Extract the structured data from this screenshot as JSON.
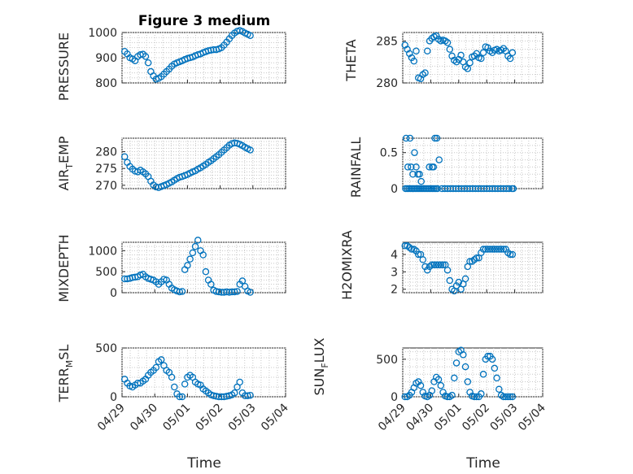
{
  "chart_data": [
    {
      "type": "scatter",
      "title": "Figure 3 medium",
      "ylabel": "PRESSURE",
      "xlabel": "",
      "ylim": [
        800,
        1000
      ],
      "yticks": [
        800,
        900,
        1000
      ],
      "yticklabels": [
        "800",
        "900",
        "1000"
      ],
      "xticks": [
        "04/29",
        "04/30",
        "05/01",
        "05/02",
        "05/03",
        "05/04"
      ],
      "grid": true,
      "x": [
        0.08,
        0.16,
        0.24,
        0.32,
        0.4,
        0.48,
        0.56,
        0.64,
        0.72,
        0.8,
        0.88,
        0.96,
        1.04,
        1.12,
        1.2,
        1.28,
        1.36,
        1.44,
        1.52,
        1.6,
        1.68,
        1.76,
        1.84,
        1.92,
        2.0,
        2.08,
        2.16,
        2.24,
        2.32,
        2.4,
        2.48,
        2.56,
        2.64,
        2.72,
        2.8,
        2.88,
        2.96,
        3.04,
        3.12,
        3.2,
        3.28,
        3.36,
        3.44,
        3.52,
        3.6,
        3.68,
        3.76,
        3.84,
        3.92
      ],
      "y": [
        925,
        915,
        900,
        895,
        888,
        905,
        912,
        914,
        905,
        880,
        845,
        828,
        815,
        818,
        825,
        835,
        845,
        855,
        866,
        875,
        880,
        884,
        888,
        893,
        897,
        900,
        903,
        908,
        912,
        915,
        920,
        924,
        928,
        930,
        932,
        932,
        935,
        940,
        950,
        962,
        975,
        988,
        998,
        1005,
        1008,
        1004,
        998,
        993,
        988
      ]
    },
    {
      "type": "scatter",
      "ylabel": "THETA",
      "ylim": [
        280,
        286
      ],
      "yticks": [
        280,
        285
      ],
      "yticklabels": [
        "280",
        "285"
      ],
      "xticks": [
        "04/29",
        "04/30",
        "05/01",
        "05/02",
        "05/03",
        "05/04"
      ],
      "grid": true,
      "x": [
        0.08,
        0.16,
        0.24,
        0.32,
        0.4,
        0.48,
        0.56,
        0.64,
        0.72,
        0.8,
        0.88,
        0.96,
        1.04,
        1.12,
        1.2,
        1.28,
        1.36,
        1.44,
        1.52,
        1.6,
        1.68,
        1.76,
        1.84,
        1.92,
        2.0,
        2.08,
        2.16,
        2.24,
        2.32,
        2.4,
        2.48,
        2.56,
        2.64,
        2.72,
        2.8,
        2.88,
        2.96,
        3.04,
        3.12,
        3.2,
        3.28,
        3.36,
        3.44,
        3.52,
        3.6,
        3.68,
        3.76,
        3.84,
        3.92
      ],
      "y": [
        284.5,
        284.0,
        283.5,
        283.0,
        282.6,
        283.8,
        280.6,
        280.5,
        281.0,
        281.2,
        283.8,
        285.0,
        285.3,
        285.5,
        285.6,
        285.2,
        285.0,
        285.1,
        285.0,
        284.8,
        284.0,
        283.2,
        282.7,
        282.5,
        282.8,
        283.3,
        282.5,
        281.9,
        281.7,
        282.4,
        283.1,
        283.2,
        283.5,
        283.0,
        282.9,
        283.6,
        284.3,
        284.2,
        283.8,
        283.6,
        283.9,
        284.0,
        283.8,
        283.9,
        284.1,
        283.8,
        283.2,
        282.9,
        283.6
      ]
    },
    {
      "type": "scatter",
      "ylabel": "AIR_TEMP",
      "ylim": [
        269,
        284
      ],
      "yticks": [
        270,
        275,
        280
      ],
      "yticklabels": [
        "270",
        "275",
        "280"
      ],
      "xticks": [
        "04/29",
        "04/30",
        "05/01",
        "05/02",
        "05/03",
        "05/04"
      ],
      "grid": true,
      "x": [
        0.08,
        0.16,
        0.24,
        0.32,
        0.4,
        0.48,
        0.56,
        0.64,
        0.72,
        0.8,
        0.88,
        0.96,
        1.04,
        1.12,
        1.2,
        1.28,
        1.36,
        1.44,
        1.52,
        1.6,
        1.68,
        1.76,
        1.84,
        1.92,
        2.0,
        2.08,
        2.16,
        2.24,
        2.32,
        2.4,
        2.48,
        2.56,
        2.64,
        2.72,
        2.8,
        2.88,
        2.96,
        3.04,
        3.12,
        3.2,
        3.28,
        3.36,
        3.44,
        3.52,
        3.6,
        3.68,
        3.76,
        3.84,
        3.92
      ],
      "y": [
        278.5,
        276.8,
        275.6,
        274.8,
        274.2,
        274.0,
        274.5,
        274.0,
        273.4,
        272.6,
        271.2,
        270.1,
        269.5,
        269.3,
        269.6,
        269.9,
        270.2,
        270.6,
        271.0,
        271.5,
        272.0,
        272.4,
        272.6,
        272.9,
        273.2,
        273.6,
        274.0,
        274.3,
        274.8,
        275.2,
        275.7,
        276.2,
        276.8,
        277.3,
        277.9,
        278.5,
        279.1,
        279.8,
        280.5,
        281.2,
        281.9,
        282.4,
        282.6,
        282.5,
        282.2,
        281.8,
        281.3,
        280.9,
        280.5
      ]
    },
    {
      "type": "scatter",
      "ylabel": "RAINFALL",
      "ylim": [
        0,
        0.7
      ],
      "yticks": [
        0,
        0.5
      ],
      "yticklabels": [
        "0",
        "0.5"
      ],
      "xticks": [
        "04/29",
        "04/30",
        "05/01",
        "05/02",
        "05/03",
        "05/04"
      ],
      "grid": true,
      "x": [
        0.1,
        0.16,
        0.22,
        0.28,
        0.34,
        0.4,
        0.46,
        0.52,
        0.58,
        0.64,
        0.7,
        0.76,
        0.82,
        0.88,
        0.94,
        1.0,
        1.06,
        1.12,
        1.18,
        1.24,
        0.12,
        0.26,
        0.18,
        0.3,
        0.36,
        0.42,
        0.48,
        0.54,
        0.6,
        0.66,
        0.95,
        1.05,
        1.1,
        1.15,
        1.22,
        1.3,
        1.4,
        1.5,
        1.6,
        1.7,
        1.8,
        1.9,
        2.0,
        2.1,
        2.2,
        2.3,
        2.4,
        2.5,
        2.6,
        2.7,
        2.8,
        2.9,
        3.0,
        3.1,
        3.2,
        3.3,
        3.4,
        3.5,
        3.6,
        3.7,
        3.8,
        3.9,
        3.95
      ],
      "y": [
        0,
        0,
        0,
        0,
        0,
        0,
        0,
        0,
        0,
        0,
        0,
        0,
        0,
        0,
        0,
        0,
        0,
        0,
        0,
        0,
        0.7,
        0.7,
        0.3,
        0.3,
        0.2,
        0.5,
        0.3,
        0.2,
        0.2,
        0.1,
        0.3,
        0.3,
        0.3,
        0.7,
        0.7,
        0.4,
        0,
        0,
        0,
        0,
        0,
        0,
        0,
        0,
        0,
        0,
        0,
        0,
        0,
        0,
        0,
        0,
        0,
        0,
        0,
        0,
        0,
        0,
        0,
        0,
        0,
        0,
        0
      ]
    },
    {
      "type": "scatter",
      "ylabel": "MIXDEPTH",
      "ylim": [
        0,
        1200
      ],
      "yticks": [
        0,
        500,
        1000
      ],
      "yticklabels": [
        "0",
        "500",
        "1000"
      ],
      "xticks": [
        "04/29",
        "04/30",
        "05/01",
        "05/02",
        "05/03",
        "05/04"
      ],
      "grid": true,
      "x": [
        0.08,
        0.16,
        0.24,
        0.32,
        0.4,
        0.48,
        0.56,
        0.64,
        0.72,
        0.8,
        0.88,
        0.96,
        1.04,
        1.12,
        1.2,
        1.28,
        1.36,
        1.44,
        1.52,
        1.6,
        1.68,
        1.76,
        1.84,
        1.92,
        2.0,
        2.08,
        2.16,
        2.24,
        2.32,
        2.4,
        2.48,
        2.56,
        2.64,
        2.72,
        2.8,
        2.88,
        2.96,
        3.04,
        3.12,
        3.2,
        3.28,
        3.36,
        3.44,
        3.52,
        3.6,
        3.68,
        3.76,
        3.84,
        3.92
      ],
      "y": [
        330,
        330,
        340,
        360,
        370,
        380,
        420,
        440,
        380,
        340,
        320,
        300,
        260,
        200,
        260,
        320,
        300,
        200,
        110,
        70,
        40,
        20,
        30,
        550,
        650,
        800,
        950,
        1100,
        1250,
        1000,
        900,
        500,
        300,
        200,
        60,
        30,
        20,
        10,
        10,
        20,
        10,
        20,
        20,
        30,
        200,
        280,
        150,
        40,
        10
      ]
    },
    {
      "type": "scatter",
      "ylabel": "H2OMIXRA",
      "ylim": [
        1.8,
        4.7
      ],
      "yticks": [
        2,
        3,
        4
      ],
      "yticklabels": [
        "2",
        "3",
        "4"
      ],
      "xticks": [
        "04/29",
        "04/30",
        "05/01",
        "05/02",
        "05/03",
        "05/04"
      ],
      "grid": true,
      "x": [
        0.08,
        0.16,
        0.24,
        0.32,
        0.4,
        0.48,
        0.56,
        0.64,
        0.72,
        0.8,
        0.88,
        0.96,
        1.04,
        1.12,
        1.2,
        1.28,
        1.36,
        1.44,
        1.52,
        1.6,
        1.68,
        1.76,
        1.84,
        1.92,
        2.0,
        2.08,
        2.16,
        2.24,
        2.32,
        2.4,
        2.48,
        2.56,
        2.64,
        2.72,
        2.8,
        2.88,
        2.96,
        3.04,
        3.12,
        3.2,
        3.28,
        3.36,
        3.44,
        3.52,
        3.6,
        3.68,
        3.76,
        3.84,
        3.92
      ],
      "y": [
        4.5,
        4.5,
        4.4,
        4.3,
        4.3,
        4.2,
        4.0,
        4.0,
        3.7,
        3.3,
        3.1,
        3.3,
        3.4,
        3.4,
        3.4,
        3.4,
        3.4,
        3.4,
        3.4,
        3.1,
        2.5,
        2.0,
        1.9,
        2.2,
        2.4,
        2.0,
        2.3,
        2.6,
        3.3,
        3.6,
        3.6,
        3.7,
        3.8,
        3.8,
        4.1,
        4.3,
        4.3,
        4.3,
        4.3,
        4.3,
        4.3,
        4.3,
        4.3,
        4.3,
        4.3,
        4.3,
        4.1,
        4.0,
        4.0
      ]
    },
    {
      "type": "scatter",
      "ylabel": "TERR_MSL",
      "ylim": [
        0,
        500
      ],
      "yticks": [
        0,
        500
      ],
      "yticklabels": [
        "0",
        "500"
      ],
      "xticks": [
        "04/29",
        "04/30",
        "05/01",
        "05/02",
        "05/03",
        "05/04"
      ],
      "grid": true,
      "x": [
        0.08,
        0.16,
        0.24,
        0.32,
        0.4,
        0.48,
        0.56,
        0.64,
        0.72,
        0.8,
        0.88,
        0.96,
        1.04,
        1.12,
        1.2,
        1.28,
        1.36,
        1.44,
        1.52,
        1.6,
        1.68,
        1.76,
        1.84,
        1.92,
        2.0,
        2.08,
        2.16,
        2.24,
        2.32,
        2.4,
        2.48,
        2.56,
        2.64,
        2.72,
        2.8,
        2.88,
        2.96,
        3.04,
        3.12,
        3.2,
        3.28,
        3.36,
        3.44,
        3.52,
        3.6,
        3.68,
        3.76,
        3.84,
        3.92
      ],
      "y": [
        180,
        140,
        110,
        100,
        120,
        140,
        140,
        160,
        180,
        220,
        250,
        270,
        300,
        360,
        380,
        320,
        270,
        250,
        200,
        100,
        30,
        0,
        0,
        130,
        200,
        220,
        200,
        150,
        130,
        120,
        80,
        60,
        40,
        20,
        10,
        5,
        0,
        0,
        0,
        5,
        10,
        20,
        40,
        100,
        150,
        40,
        10,
        10,
        15
      ]
    },
    {
      "type": "scatter",
      "ylabel": "SUN_FLUX",
      "ylim": [
        0,
        650
      ],
      "yticks": [
        0,
        500
      ],
      "yticklabels": [
        "0",
        "500"
      ],
      "xticks": [
        "04/29",
        "04/30",
        "05/01",
        "05/02",
        "05/03",
        "05/04"
      ],
      "grid": true,
      "x": [
        0.08,
        0.16,
        0.24,
        0.32,
        0.4,
        0.48,
        0.56,
        0.64,
        0.72,
        0.8,
        0.88,
        0.96,
        1.04,
        1.12,
        1.2,
        1.28,
        1.36,
        1.44,
        1.52,
        1.6,
        1.68,
        1.76,
        1.84,
        1.92,
        2.0,
        2.08,
        2.16,
        2.24,
        2.32,
        2.4,
        2.48,
        2.56,
        2.64,
        2.72,
        2.8,
        2.88,
        2.96,
        3.04,
        3.12,
        3.2,
        3.28,
        3.36,
        3.44,
        3.52,
        3.6,
        3.68,
        3.76,
        3.84,
        3.92
      ],
      "y": [
        0,
        0,
        20,
        60,
        120,
        180,
        200,
        150,
        60,
        10,
        0,
        20,
        80,
        200,
        260,
        230,
        150,
        60,
        10,
        0,
        0,
        20,
        250,
        450,
        600,
        620,
        560,
        400,
        200,
        60,
        10,
        0,
        0,
        0,
        40,
        300,
        500,
        540,
        540,
        500,
        380,
        250,
        100,
        20,
        0,
        0,
        0,
        0,
        0
      ]
    }
  ],
  "xlabel_left": "Time",
  "xlabel_right": "Time",
  "marker_color": "#0072BD",
  "ylabels": {
    "p0": {
      "main": "PRESSURE"
    },
    "p1": {
      "main": "THETA"
    },
    "p2": {
      "pre": "AIR",
      "sub": "T",
      "post": "EMP"
    },
    "p3": {
      "main": "RAINFALL"
    },
    "p4": {
      "main": "MIXDEPTH"
    },
    "p5": {
      "main": "H2OMIXRA"
    },
    "p6": {
      "pre": "TERR",
      "sub": "M",
      "post": "SL"
    },
    "p7": {
      "pre": "SUN",
      "sub": "F",
      "post": "LUX"
    }
  }
}
